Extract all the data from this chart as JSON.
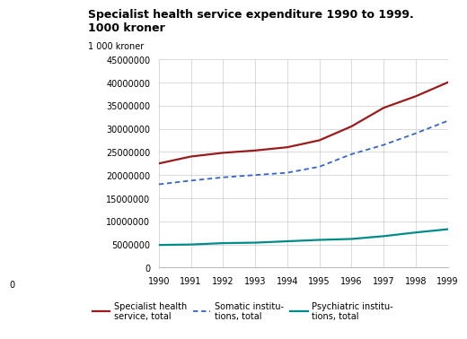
{
  "title_line1": "Specialist health service expenditure 1990 to 1999.",
  "title_line2": "1000 kroner",
  "ylabel": "1 000 kroner",
  "years": [
    1990,
    1991,
    1992,
    1993,
    1994,
    1995,
    1996,
    1997,
    1998,
    1999
  ],
  "specialist_total": [
    22500000,
    24000000,
    24800000,
    25300000,
    26000000,
    27500000,
    30500000,
    34500000,
    37000000,
    40000000
  ],
  "somatic_total": [
    18000000,
    18800000,
    19500000,
    20000000,
    20500000,
    21800000,
    24500000,
    26500000,
    29000000,
    31700000
  ],
  "psychiatric_total": [
    4900000,
    5000000,
    5300000,
    5400000,
    5700000,
    6000000,
    6200000,
    6800000,
    7600000,
    8300000
  ],
  "color_specialist": "#9B1B1B",
  "color_somatic": "#3366CC",
  "color_psychiatric": "#008B8B",
  "ylim": [
    0,
    45000000
  ],
  "yticks": [
    0,
    5000000,
    10000000,
    15000000,
    20000000,
    25000000,
    30000000,
    35000000,
    40000000,
    45000000
  ],
  "teal_line_color": "#008B8B",
  "background_color": "#ffffff",
  "grid_color": "#cccccc",
  "font_size_title": 9,
  "font_size_tick": 7,
  "font_size_legend": 7,
  "font_size_ylabel": 7
}
